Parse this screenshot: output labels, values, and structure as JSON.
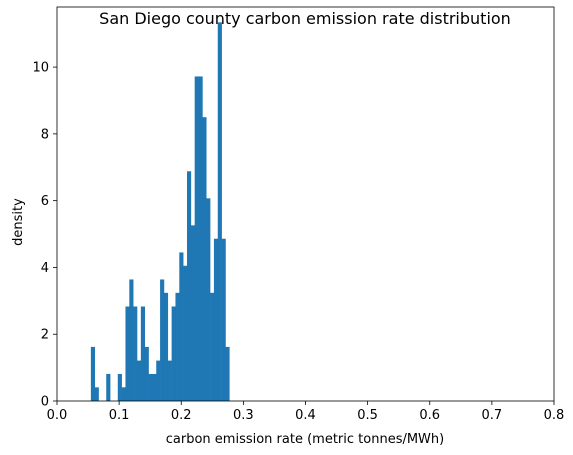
{
  "chart_data": {
    "type": "bar",
    "title": "San Diego county carbon emission rate distribution",
    "xlabel": "carbon emission rate (metric tonnes/MWh)",
    "ylabel": "density",
    "xlim": [
      0.0,
      0.8
    ],
    "ylim": [
      0,
      11.8
    ],
    "x_ticks": [
      "0.0",
      "0.1",
      "0.2",
      "0.3",
      "0.4",
      "0.5",
      "0.6",
      "0.7",
      "0.8"
    ],
    "y_ticks": [
      "0",
      "2",
      "4",
      "6",
      "8",
      "10"
    ],
    "grid": false,
    "color": "#1f77b4",
    "bin_width": 0.00619,
    "bin_start": 0.0545,
    "values": [
      1.62,
      0.41,
      0,
      0,
      0.81,
      0,
      0,
      0.81,
      0.41,
      2.83,
      3.64,
      2.83,
      1.21,
      2.83,
      1.62,
      0.81,
      0.81,
      1.21,
      3.64,
      3.24,
      1.21,
      2.83,
      3.24,
      4.45,
      4.05,
      6.88,
      5.26,
      9.72,
      9.72,
      8.5,
      6.07,
      3.24,
      4.86,
      11.34,
      4.86,
      1.62
    ]
  }
}
